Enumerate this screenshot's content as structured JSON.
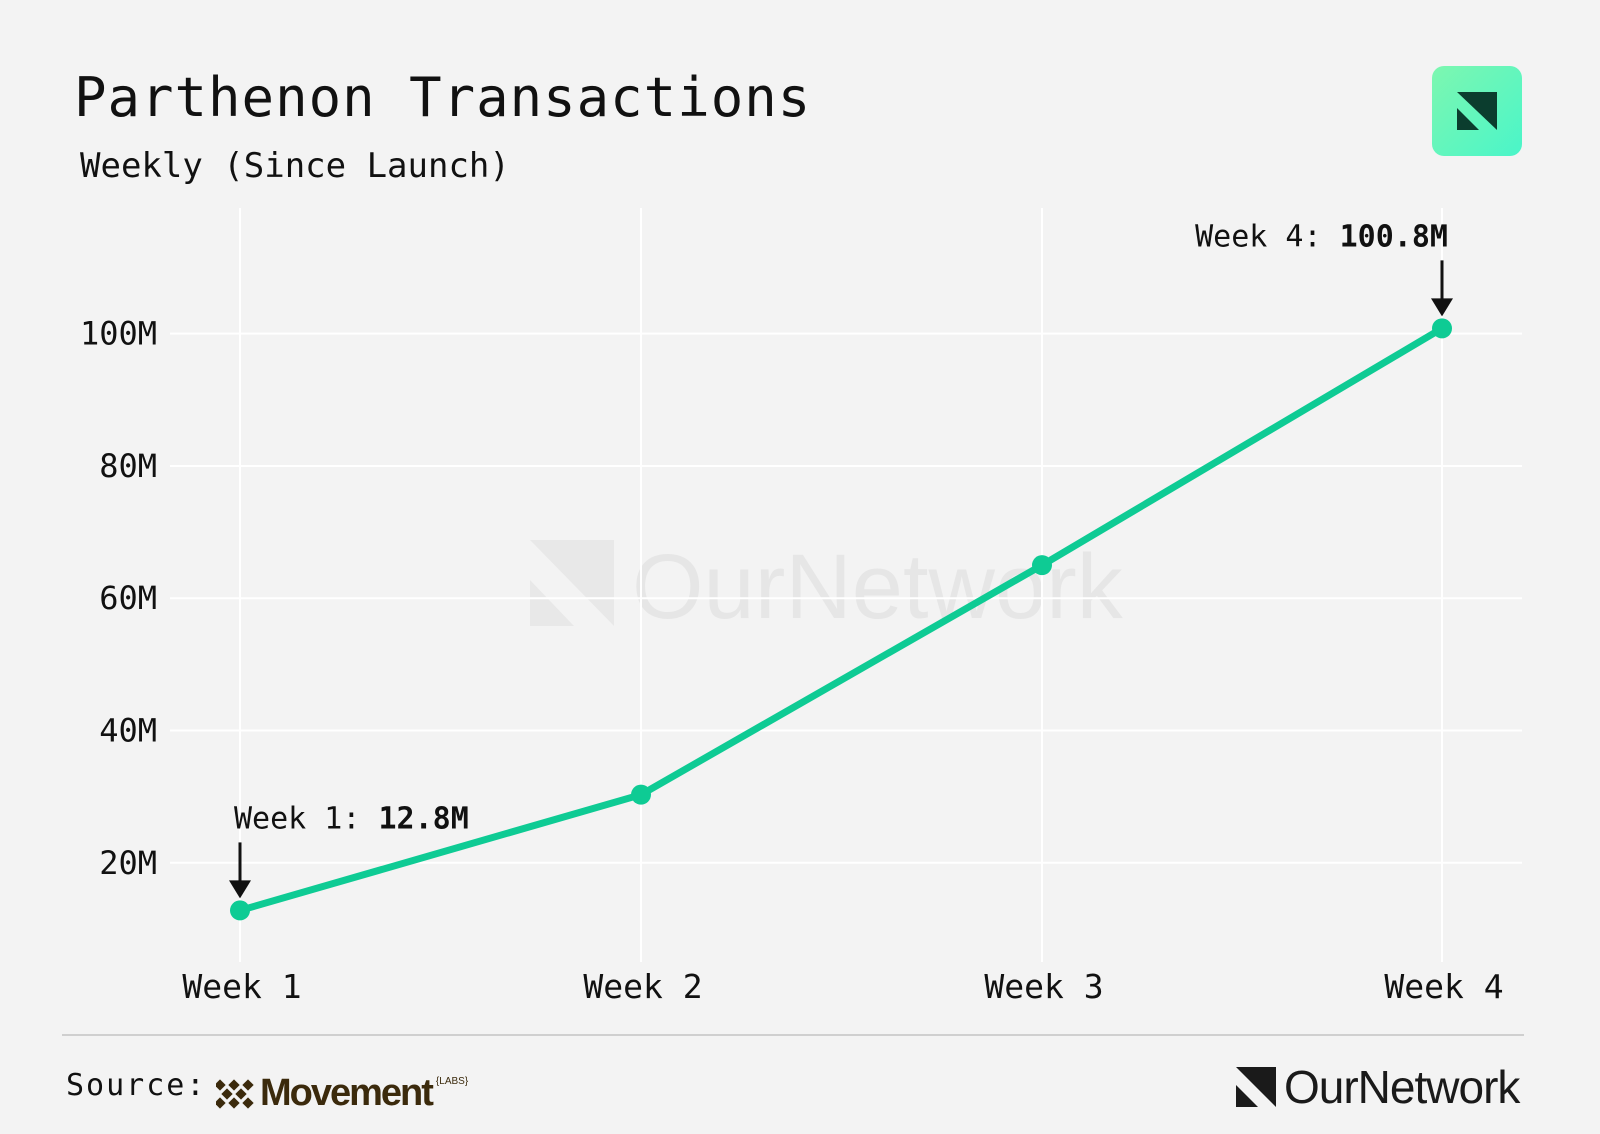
{
  "header": {
    "title": "Parthenon Transactions",
    "subtitle": "Weekly (Since Launch)",
    "badge_icon": "ournetwork-logo-icon"
  },
  "watermark": {
    "text": "OurNetwork"
  },
  "footer": {
    "source_label": "Source:",
    "source_brand": "Movement",
    "source_brand_suffix": "{LABS}",
    "brand": "OurNetwork"
  },
  "colors": {
    "line": "#0ecb94",
    "background": "#f3f3f3",
    "grid": "#ffffff",
    "badge": "#5ef5c0"
  },
  "chart_data": {
    "type": "line",
    "title": "Parthenon Transactions",
    "subtitle": "Weekly (Since Launch)",
    "categories": [
      "Week 1",
      "Week 2",
      "Week 3",
      "Week 4"
    ],
    "series": [
      {
        "values": [
          12.8,
          30.3,
          65.0,
          100.8
        ]
      }
    ],
    "y_unit_suffix": "M",
    "yticks": [
      20,
      40,
      60,
      80,
      100
    ],
    "ytick_labels": [
      "20M",
      "40M",
      "60M",
      "80M",
      "100M"
    ],
    "ylim": [
      5,
      119
    ],
    "grid": true,
    "annotations": [
      {
        "index": 0,
        "prefix": "Week 1: ",
        "value_text": "12.8M"
      },
      {
        "index": 3,
        "prefix": "Week 4: ",
        "value_text": "100.8M"
      }
    ]
  }
}
